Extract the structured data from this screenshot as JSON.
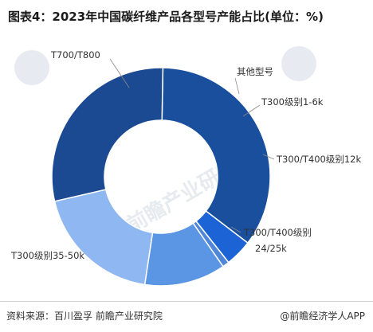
{
  "title": "图表4：2023年中国碳纤维产品各型号产能占比(单位：%)",
  "source": "资料来源：百川盈孚 前瞻产业研究院",
  "brand": "@前瞻经济学人APP",
  "watermark": "前瞻产业研究院",
  "chart_data": {
    "type": "pie",
    "donut": true,
    "categories": [
      "T700/T800",
      "其他型号",
      "T300级别1-6k",
      "T300/T400级别12k",
      "T300/T400级别24/25k",
      "T300级别35-50k"
    ],
    "values": [
      35.1,
      4.0,
      1.0,
      12.0,
      19.0,
      28.9
    ],
    "colors": [
      "#1a4f9e",
      "#1c63d6",
      "#4f86d8",
      "#5a96e3",
      "#8fb8f2",
      "#1c4a92"
    ],
    "start_angle_deg": 89
  }
}
